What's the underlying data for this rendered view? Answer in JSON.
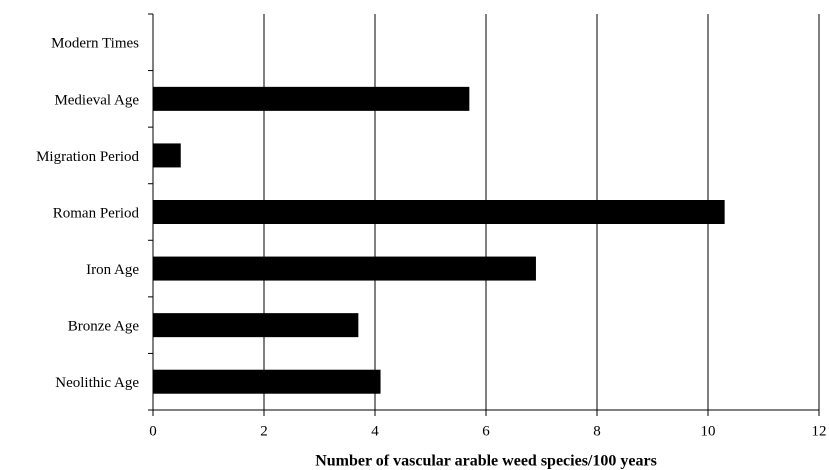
{
  "chart_data": {
    "type": "barh",
    "categories": [
      "Modern Times",
      "Medieval Age",
      "Migration Period",
      "Roman Period",
      "Iron Age",
      "Bronze Age",
      "Neolithic Age"
    ],
    "values": [
      0,
      5.7,
      0.5,
      10.3,
      6.9,
      3.7,
      4.1
    ],
    "color": "#000000",
    "xlabel": "Number of vascular arable weed species/100 years",
    "xlim": [
      0,
      12
    ],
    "xticks": [
      0,
      2,
      4,
      6,
      8,
      10,
      12
    ],
    "grid": true
  }
}
